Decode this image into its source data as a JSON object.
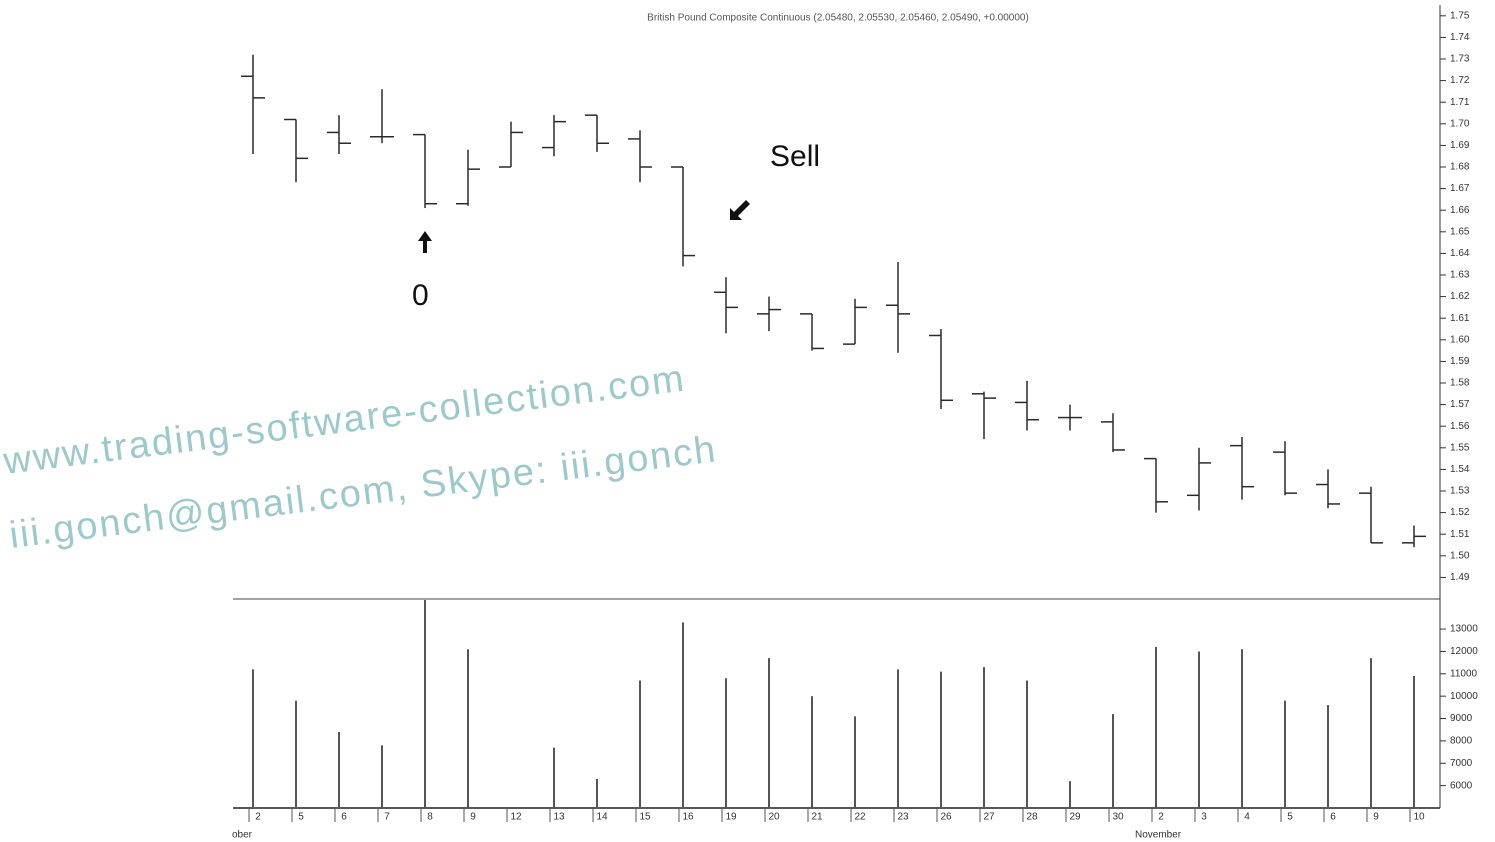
{
  "chart_data": {
    "type": "ohlc",
    "title": "British Pound Composite Continuous (2.05480, 2.05530, 2.05460, 2.05490, +0.00000)",
    "categories": [
      "2",
      "5",
      "6",
      "7",
      "8",
      "9",
      "12",
      "13",
      "14",
      "15",
      "16",
      "19",
      "20",
      "21",
      "22",
      "23",
      "26",
      "27",
      "28",
      "29",
      "30",
      "2",
      "3",
      "4",
      "5",
      "6",
      "9",
      "10"
    ],
    "months": [
      {
        "label": "ober",
        "index": 0
      },
      {
        "label": "November",
        "index": 21
      }
    ],
    "open": [
      1.722,
      1.702,
      1.696,
      1.694,
      1.695,
      1.663,
      1.68,
      1.689,
      1.704,
      1.693,
      1.68,
      1.622,
      1.612,
      1.612,
      1.598,
      1.616,
      1.602,
      1.575,
      1.571,
      1.564,
      1.562,
      1.545,
      1.528,
      1.551,
      1.548,
      1.533,
      1.529,
      1.506
    ],
    "high": [
      1.732,
      1.702,
      1.704,
      1.716,
      1.695,
      1.688,
      1.701,
      1.704,
      1.704,
      1.697,
      1.68,
      1.629,
      1.62,
      1.612,
      1.619,
      1.636,
      1.605,
      1.576,
      1.581,
      1.57,
      1.566,
      1.545,
      1.55,
      1.555,
      1.553,
      1.54,
      1.532,
      1.514
    ],
    "low": [
      1.686,
      1.673,
      1.686,
      1.691,
      1.661,
      1.662,
      1.68,
      1.685,
      1.687,
      1.673,
      1.634,
      1.603,
      1.604,
      1.595,
      1.598,
      1.594,
      1.568,
      1.554,
      1.558,
      1.558,
      1.548,
      1.52,
      1.521,
      1.526,
      1.528,
      1.522,
      1.506,
      1.504
    ],
    "close": [
      1.712,
      1.684,
      1.691,
      1.694,
      1.663,
      1.679,
      1.696,
      1.701,
      1.691,
      1.68,
      1.639,
      1.615,
      1.614,
      1.596,
      1.615,
      1.612,
      1.572,
      1.573,
      1.563,
      1.564,
      1.549,
      1.525,
      1.543,
      1.532,
      1.529,
      1.524,
      1.506,
      1.509
    ],
    "color": "#2b2b2b",
    "ylim": [
      1.48,
      1.755
    ],
    "yticks": [
      1.75,
      1.74,
      1.73,
      1.72,
      1.71,
      {
        "value": 1.7,
        "label": "1.70"
      },
      1.69,
      1.68,
      1.67,
      1.66,
      1.65,
      1.64,
      1.63,
      1.62,
      1.61,
      {
        "value": 1.6,
        "label": "1.60"
      },
      1.59,
      1.58,
      1.57,
      1.56,
      1.55,
      1.54,
      1.53,
      1.52,
      1.51,
      {
        "value": 1.5,
        "label": "1.50"
      },
      1.49
    ],
    "volume": {
      "values": [
        11200,
        9800,
        8400,
        7800,
        14300,
        12100,
        null,
        7700,
        6300,
        10700,
        13300,
        10800,
        11700,
        10000,
        9100,
        11200,
        11100,
        11300,
        10700,
        6200,
        9200,
        12200,
        12000,
        12100,
        9800,
        9600,
        11700,
        10900
      ],
      "color": "#555555",
      "ylim": [
        5000,
        14300
      ],
      "yticks": [
        13000,
        12000,
        11000,
        10000,
        9000,
        8000,
        7000,
        6000
      ]
    },
    "annotations": [
      "Sell",
      "0",
      "www.trading-software-collection.com",
      "iii.gonch@gmail.com, Skype: iii.gonch"
    ]
  }
}
